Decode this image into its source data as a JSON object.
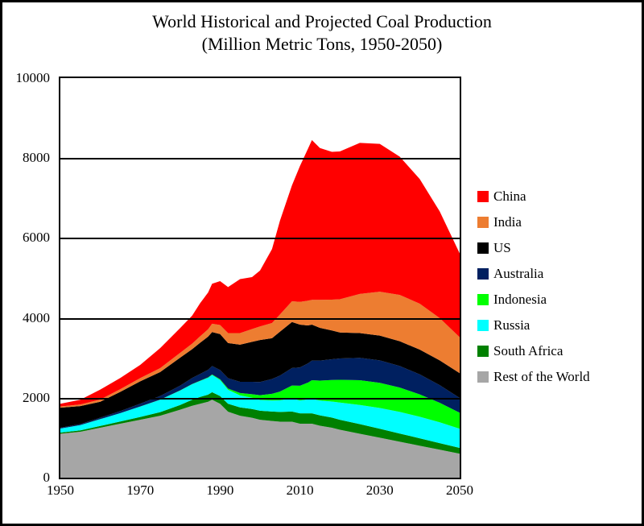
{
  "chart": {
    "type": "area-stacked",
    "title_line1": "World Historical and Projected Coal Production",
    "title_line2": "(Million Metric Tons, 1950-2050)",
    "title_fontsize": 22,
    "title_color": "#000000",
    "background_color": "#ffffff",
    "frame_border_color": "#000000",
    "plot_border_color": "#000000",
    "grid_color": "#000000",
    "tick_fontsize": 17,
    "tick_color": "#000000",
    "legend_fontsize": 17,
    "xlim": [
      1950,
      2050
    ],
    "ylim": [
      0,
      10000
    ],
    "xticks": [
      1950,
      1970,
      1990,
      2010,
      2030,
      2050
    ],
    "yticks": [
      0,
      2000,
      4000,
      6000,
      8000,
      10000
    ],
    "years": [
      1950,
      1955,
      1960,
      1965,
      1970,
      1975,
      1980,
      1983,
      1985,
      1987,
      1988,
      1990,
      1992,
      1995,
      1998,
      2000,
      2003,
      2005,
      2008,
      2010,
      2012,
      2013,
      2015,
      2018,
      2020,
      2025,
      2030,
      2035,
      2040,
      2045,
      2050
    ],
    "series": [
      {
        "name": "Rest of the World",
        "color": "#a6a6a6",
        "values": [
          1100,
          1150,
          1250,
          1350,
          1450,
          1550,
          1700,
          1800,
          1850,
          1900,
          1950,
          1850,
          1650,
          1550,
          1500,
          1450,
          1420,
          1400,
          1400,
          1350,
          1350,
          1350,
          1300,
          1250,
          1200,
          1100,
          1000,
          900,
          800,
          700,
          600
        ]
      },
      {
        "name": "South Africa",
        "color": "#008000",
        "values": [
          30,
          35,
          45,
          55,
          70,
          90,
          120,
          150,
          170,
          180,
          190,
          195,
          200,
          210,
          220,
          225,
          235,
          245,
          255,
          260,
          260,
          260,
          260,
          255,
          250,
          240,
          225,
          205,
          185,
          165,
          145
        ]
      },
      {
        "name": "Russia",
        "color": "#00ffff",
        "values": [
          100,
          130,
          170,
          210,
          260,
          310,
          360,
          390,
          400,
          420,
          430,
          400,
          350,
          300,
          280,
          270,
          275,
          290,
          330,
          320,
          350,
          360,
          370,
          400,
          430,
          480,
          520,
          540,
          540,
          520,
          480
        ]
      },
      {
        "name": "Indonesia",
        "color": "#00ff00",
        "values": [
          1,
          1,
          1,
          1,
          2,
          3,
          4,
          5,
          7,
          10,
          14,
          20,
          30,
          60,
          90,
          120,
          170,
          220,
          320,
          370,
          420,
          470,
          500,
          540,
          570,
          620,
          630,
          610,
          560,
          490,
          400
        ]
      },
      {
        "name": "Australia",
        "color": "#002060",
        "values": [
          20,
          25,
          35,
          50,
          70,
          90,
          120,
          150,
          170,
          190,
          210,
          230,
          260,
          280,
          310,
          330,
          370,
          400,
          440,
          460,
          480,
          490,
          500,
          520,
          535,
          560,
          560,
          540,
          500,
          440,
          370
        ]
      },
      {
        "name": "US",
        "color": "#000000",
        "values": [
          500,
          450,
          400,
          480,
          560,
          600,
          700,
          720,
          780,
          830,
          850,
          900,
          880,
          930,
          1000,
          1050,
          1020,
          1100,
          1150,
          1070,
          950,
          900,
          820,
          720,
          650,
          620,
          620,
          620,
          620,
          620,
          620
        ]
      },
      {
        "name": "India",
        "color": "#ed7d31",
        "values": [
          30,
          40,
          55,
          70,
          80,
          100,
          120,
          140,
          160,
          185,
          210,
          225,
          250,
          290,
          320,
          340,
          380,
          430,
          520,
          570,
          620,
          620,
          700,
          770,
          830,
          980,
          1100,
          1160,
          1150,
          1060,
          900
        ]
      },
      {
        "name": "China",
        "color": "#ff0000",
        "values": [
          70,
          120,
          250,
          280,
          330,
          500,
          620,
          700,
          830,
          920,
          1000,
          1100,
          1150,
          1350,
          1300,
          1400,
          1850,
          2350,
          2900,
          3400,
          3800,
          4000,
          3800,
          3700,
          3700,
          3780,
          3700,
          3460,
          3120,
          2670,
          2100
        ]
      }
    ]
  }
}
